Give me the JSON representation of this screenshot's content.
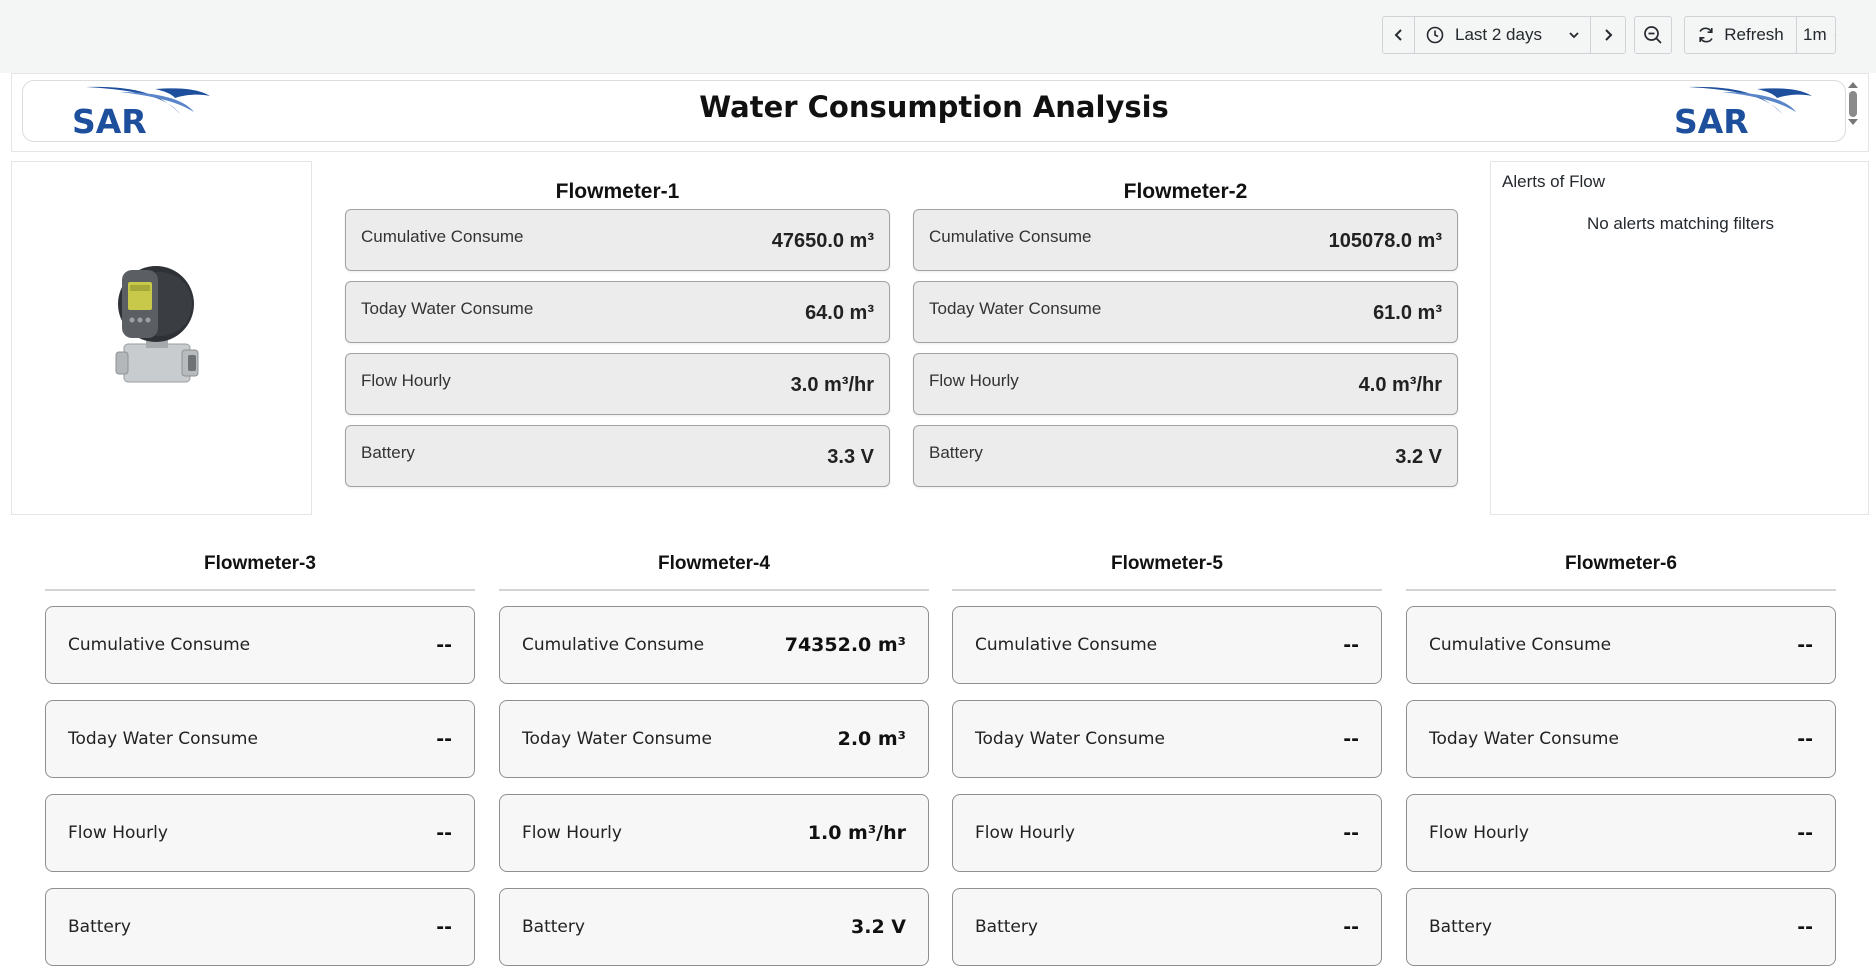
{
  "toolbar": {
    "time_range_label": "Last 2 days",
    "refresh_label": "Refresh",
    "interval_label": "1m"
  },
  "header": {
    "title": "Water Consumption Analysis",
    "logo_text": "SAR"
  },
  "colors": {
    "brand_blue": "#1d4f9c",
    "card_top_bg": "#ececec",
    "card_bottom_bg": "#f7f7f7"
  },
  "flowmeters_top": [
    {
      "title": "Flowmeter-1",
      "metrics": [
        {
          "label": "Cumulative Consume",
          "value": "47650.0 m³"
        },
        {
          "label": "Today Water Consume",
          "value": "64.0 m³"
        },
        {
          "label": "Flow Hourly",
          "value": "3.0 m³/hr"
        },
        {
          "label": "Battery",
          "value": "3.3 V"
        }
      ]
    },
    {
      "title": "Flowmeter-2",
      "metrics": [
        {
          "label": "Cumulative Consume",
          "value": "105078.0 m³"
        },
        {
          "label": "Today Water Consume",
          "value": "61.0 m³"
        },
        {
          "label": "Flow Hourly",
          "value": "4.0 m³/hr"
        },
        {
          "label": "Battery",
          "value": "3.2 V"
        }
      ]
    }
  ],
  "alerts": {
    "title": "Alerts of Flow",
    "empty_message": "No alerts matching filters"
  },
  "flowmeters_bottom": [
    {
      "title": "Flowmeter-3",
      "metrics": [
        {
          "label": "Cumulative Consume",
          "value": "--"
        },
        {
          "label": "Today Water Consume",
          "value": "--"
        },
        {
          "label": "Flow Hourly",
          "value": "--"
        },
        {
          "label": "Battery",
          "value": "--"
        }
      ]
    },
    {
      "title": "Flowmeter-4",
      "metrics": [
        {
          "label": "Cumulative Consume",
          "value": "74352.0 m³"
        },
        {
          "label": "Today Water Consume",
          "value": "2.0 m³"
        },
        {
          "label": "Flow Hourly",
          "value": "1.0 m³/hr"
        },
        {
          "label": "Battery",
          "value": "3.2 V"
        }
      ]
    },
    {
      "title": "Flowmeter-5",
      "metrics": [
        {
          "label": "Cumulative Consume",
          "value": "--"
        },
        {
          "label": "Today Water Consume",
          "value": "--"
        },
        {
          "label": "Flow Hourly",
          "value": "--"
        },
        {
          "label": "Battery",
          "value": "--"
        }
      ]
    },
    {
      "title": "Flowmeter-6",
      "metrics": [
        {
          "label": "Cumulative Consume",
          "value": "--"
        },
        {
          "label": "Today Water Consume",
          "value": "--"
        },
        {
          "label": "Flow Hourly",
          "value": "--"
        },
        {
          "label": "Battery",
          "value": "--"
        }
      ]
    }
  ]
}
